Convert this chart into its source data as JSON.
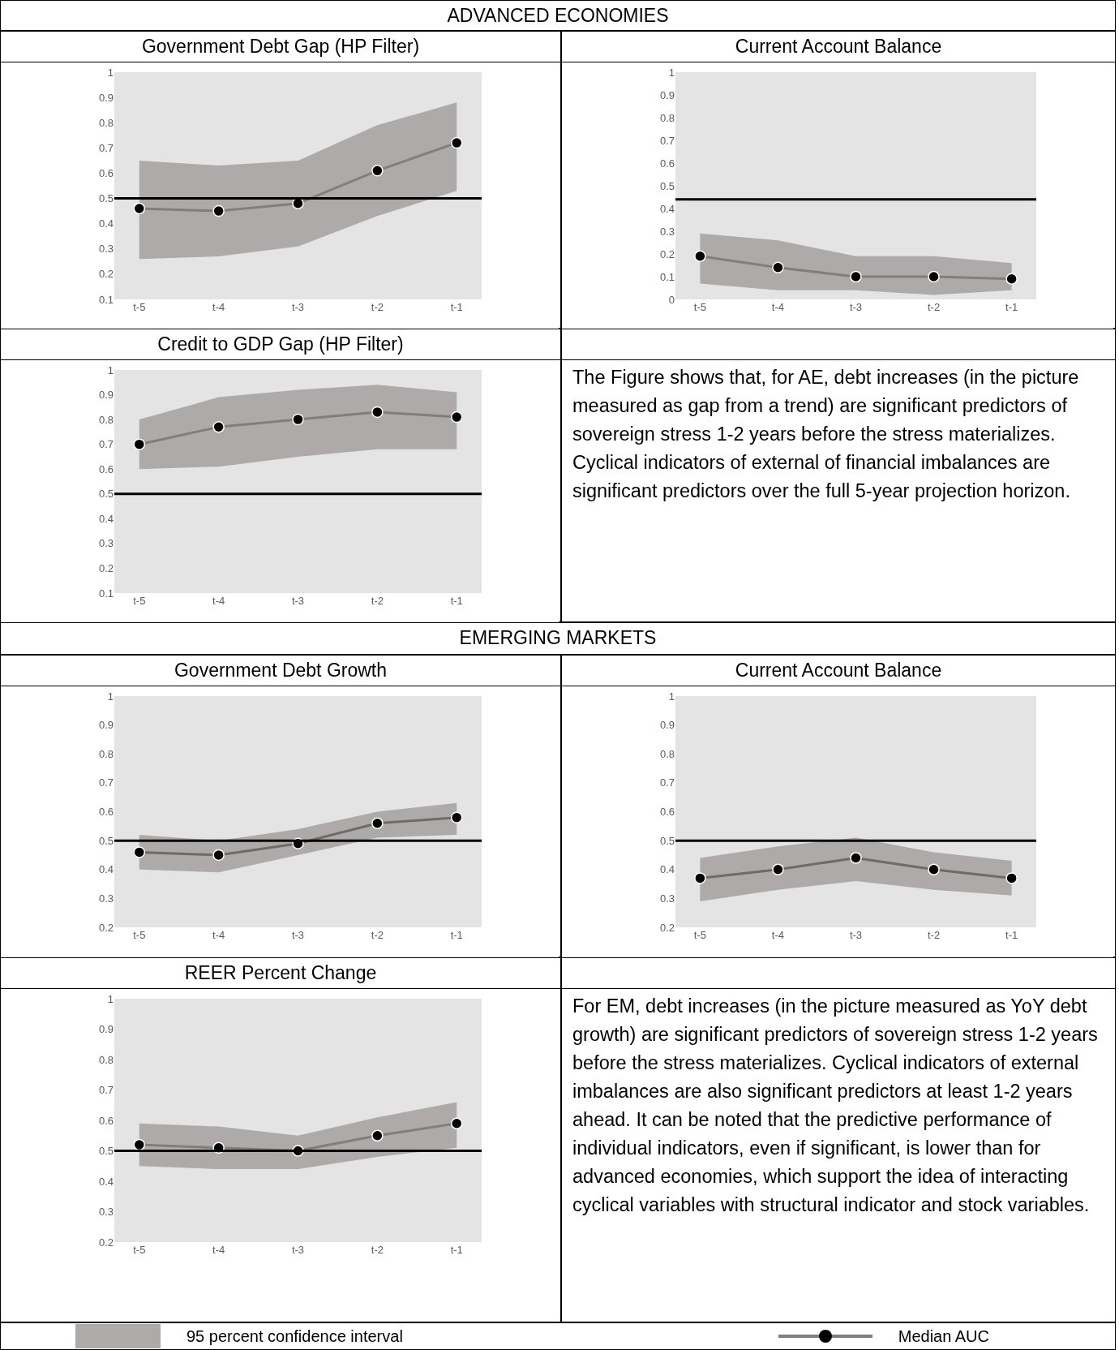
{
  "chart_data": [
    {
      "type": "other",
      "title": "ADVANCED ECONOMIES"
    },
    {
      "type": "line",
      "title": "Government Debt Gap (HP Filter)",
      "categories": [
        "t-5",
        "t-4",
        "t-3",
        "t-2",
        "t-1"
      ],
      "marker": "circle",
      "ylim": [
        0.1,
        1
      ],
      "yticks": [
        0.1,
        0.2,
        0.3,
        0.4,
        0.5,
        0.6,
        0.7,
        0.8,
        0.9,
        1
      ],
      "ref_lines": [
        {
          "axis": "y",
          "value": 0.5,
          "color": "#000000"
        }
      ],
      "series": [
        {
          "color": "#7f7f7f",
          "values": [
            0.46,
            0.45,
            0.48,
            0.61,
            0.72
          ],
          "lower": [
            0.26,
            0.27,
            0.31,
            0.43,
            0.53
          ],
          "upper": [
            0.65,
            0.63,
            0.65,
            0.79,
            0.88
          ]
        }
      ]
    },
    {
      "type": "line",
      "title": "Current Account Balance",
      "categories": [
        "t-5",
        "t-4",
        "t-3",
        "t-2",
        "t-1"
      ],
      "marker": "circle",
      "ylim": [
        0,
        1
      ],
      "yticks": [
        0,
        0.1,
        0.2,
        0.3,
        0.4,
        0.5,
        0.6,
        0.7,
        0.8,
        0.9,
        1
      ],
      "ref_lines": [
        {
          "axis": "y",
          "value": 0.44,
          "color": "#000000"
        }
      ],
      "series": [
        {
          "color": "#7f7f7f",
          "values": [
            0.19,
            0.14,
            0.1,
            0.1,
            0.09
          ],
          "lower": [
            0.07,
            0.04,
            0.04,
            0.02,
            0.04
          ],
          "upper": [
            0.29,
            0.26,
            0.19,
            0.19,
            0.16
          ]
        }
      ]
    },
    {
      "type": "line",
      "title": "Credit to GDP Gap (HP Filter)",
      "categories": [
        "t-5",
        "t-4",
        "t-3",
        "t-2",
        "t-1"
      ],
      "marker": "circle",
      "ylim": [
        0.1,
        1
      ],
      "yticks": [
        0.1,
        0.2,
        0.3,
        0.4,
        0.5,
        0.6,
        0.7,
        0.8,
        0.9,
        1
      ],
      "ref_lines": [
        {
          "axis": "y",
          "value": 0.5,
          "color": "#000000"
        }
      ],
      "series": [
        {
          "color": "#7f7f7f",
          "values": [
            0.7,
            0.77,
            0.8,
            0.83,
            0.81
          ],
          "lower": [
            0.6,
            0.61,
            0.65,
            0.68,
            0.68
          ],
          "upper": [
            0.8,
            0.89,
            0.92,
            0.94,
            0.91
          ]
        }
      ]
    },
    {
      "type": "other",
      "annotations": [
        "The Figure shows that, for AE, debt increases (in the picture measured as gap from a trend) are significant predictors of sovereign stress 1-2 years before the stress materializes. Cyclical indicators of external of financial imbalances are significant predictors over the full 5-year projection horizon."
      ]
    },
    {
      "type": "other",
      "title": "EMERGING MARKETS"
    },
    {
      "type": "line",
      "title": "Government Debt Growth",
      "categories": [
        "t-5",
        "t-4",
        "t-3",
        "t-2",
        "t-1"
      ],
      "marker": "circle",
      "ylim": [
        0.2,
        1
      ],
      "yticks": [
        0.2,
        0.3,
        0.4,
        0.5,
        0.6,
        0.7,
        0.8,
        0.9,
        1
      ],
      "ref_lines": [
        {
          "axis": "y",
          "value": 0.5,
          "color": "#000000"
        }
      ],
      "series": [
        {
          "color": "#6f6b6b",
          "values": [
            0.46,
            0.45,
            0.49,
            0.56,
            0.58
          ],
          "lower": [
            0.4,
            0.39,
            0.45,
            0.51,
            0.52
          ],
          "upper": [
            0.52,
            0.5,
            0.54,
            0.6,
            0.63
          ]
        }
      ]
    },
    {
      "type": "line",
      "title": "Current Account Balance",
      "categories": [
        "t-5",
        "t-4",
        "t-3",
        "t-2",
        "t-1"
      ],
      "marker": "circle",
      "ylim": [
        0.2,
        1
      ],
      "yticks": [
        0.2,
        0.3,
        0.4,
        0.5,
        0.6,
        0.7,
        0.8,
        0.9,
        1
      ],
      "ref_lines": [
        {
          "axis": "y",
          "value": 0.5,
          "color": "#000000"
        }
      ],
      "series": [
        {
          "color": "#6f6b6b",
          "values": [
            0.37,
            0.4,
            0.44,
            0.4,
            0.37
          ],
          "lower": [
            0.29,
            0.33,
            0.36,
            0.33,
            0.31
          ],
          "upper": [
            0.44,
            0.48,
            0.51,
            0.46,
            0.43
          ]
        }
      ]
    },
    {
      "type": "line",
      "title": "REER Percent Change",
      "categories": [
        "t-5",
        "t-4",
        "t-3",
        "t-2",
        "t-1"
      ],
      "marker": "circle",
      "ylim": [
        0.2,
        1
      ],
      "yticks": [
        0.2,
        0.3,
        0.4,
        0.5,
        0.6,
        0.7,
        0.8,
        0.9,
        1
      ],
      "ref_lines": [
        {
          "axis": "y",
          "value": 0.5,
          "color": "#000000"
        }
      ],
      "series": [
        {
          "color": "#7f7f7f",
          "values": [
            0.52,
            0.51,
            0.5,
            0.55,
            0.59
          ],
          "lower": [
            0.45,
            0.44,
            0.44,
            0.48,
            0.51
          ],
          "upper": [
            0.59,
            0.58,
            0.55,
            0.61,
            0.66
          ]
        }
      ]
    },
    {
      "type": "other",
      "annotations": [
        "For EM, debt increases (in the picture measured as YoY debt growth) are significant predictors of sovereign stress 1-2 years before the stress materializes. Cyclical indicators of external imbalances are also significant predictors at least 1-2 years ahead. It can be noted that the predictive performance of individual indicators, even if significant, is lower than for advanced economies, which support the idea of interacting cyclical variables with structural indicator and stock variables."
      ]
    },
    {
      "type": "other",
      "annotations": [
        "95 percent confidence interval",
        "Median AUC"
      ]
    }
  ]
}
